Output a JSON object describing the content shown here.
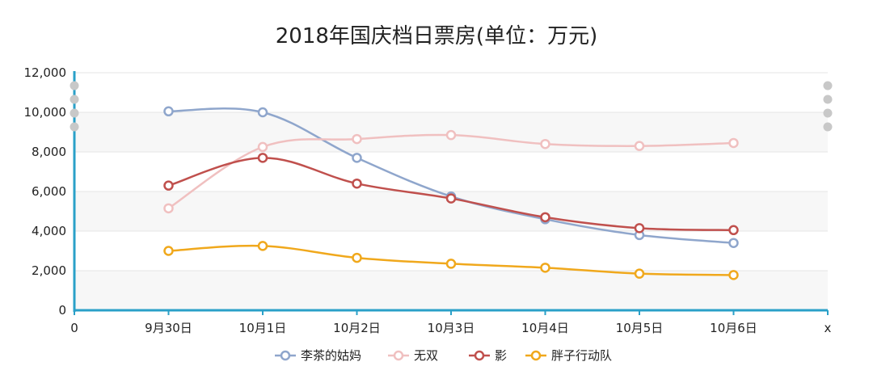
{
  "chart_data": {
    "type": "line",
    "title": "2018年国庆档日票房(单位：万元)",
    "xlabel": "x",
    "categories": [
      "0",
      "9月30日",
      "10月1日",
      "10月2日",
      "10月3日",
      "10月4日",
      "10月5日",
      "10月6日"
    ],
    "ylim": [
      0,
      12000
    ],
    "yticks": [
      0,
      2000,
      4000,
      6000,
      8000,
      10000,
      12000
    ],
    "ytick_labels": [
      "0",
      "2,000",
      "4,000",
      "6,000",
      "8,000",
      "10,000",
      "12,000"
    ],
    "grid": true,
    "legend_position": "bottom",
    "series": [
      {
        "name": "李茶的姑妈",
        "color": "#8fa6cc",
        "values": [
          null,
          10050,
          10000,
          7700,
          5750,
          4600,
          3800,
          3400
        ]
      },
      {
        "name": "无双",
        "color": "#f0c0c0",
        "values": [
          null,
          5150,
          8250,
          8650,
          8850,
          8400,
          8300,
          8450
        ]
      },
      {
        "name": "影",
        "color": "#c0504d",
        "values": [
          null,
          6300,
          7700,
          6400,
          5650,
          4700,
          4150,
          4050
        ]
      },
      {
        "name": "胖子行动队",
        "color": "#f0a81c",
        "values": [
          null,
          3000,
          3250,
          2650,
          2350,
          2150,
          1850,
          1780
        ]
      }
    ]
  }
}
